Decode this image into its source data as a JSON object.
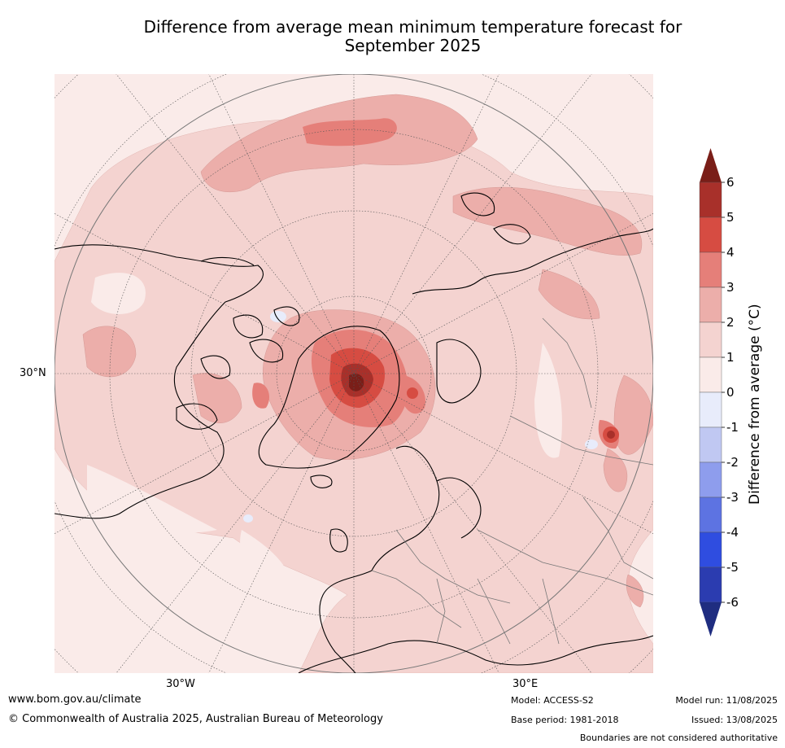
{
  "title_line1": "Difference from average mean minimum temperature forecast for",
  "title_line2": "September 2025",
  "map": {
    "lat_labels": [
      "30°N"
    ],
    "lon_labels": [
      "30°W",
      "30°E"
    ]
  },
  "colorbar": {
    "label": "Difference from average ($^\\circ$C)",
    "label_display": "Difference from average (°C)",
    "ticks": [
      "6",
      "5",
      "4",
      "3",
      "2",
      "1",
      "0",
      "-1",
      "-2",
      "-3",
      "-4",
      "-5",
      "-6"
    ],
    "colors": {
      "over": "#7a1e18",
      "5_6": "#a8302a",
      "4_5": "#d64c42",
      "3_4": "#e57f79",
      "2_3": "#ecaeaa",
      "1_2": "#f4d3d0",
      "0_1": "#faebe9",
      "m1_0": "#e8ecfb",
      "m2_m1": "#c0c8f2",
      "m3_m2": "#8e9ded",
      "m4_m3": "#5d73e2",
      "m5_m4": "#2f4de0",
      "m6_m5": "#2b3cb0",
      "under": "#1f2d80"
    }
  },
  "footer": {
    "website": "www.bom.gov.au/climate",
    "copyright": "© Commonwealth of Australia 2025, Australian Bureau of Meteorology",
    "model": "Model: ACCESS-S2",
    "base_period": "Base period: 1981-2018",
    "model_run": "Model run: 11/08/2025",
    "issued": "Issued: 13/08/2025",
    "disclaimer": "Boundaries are not considered authoritative"
  }
}
